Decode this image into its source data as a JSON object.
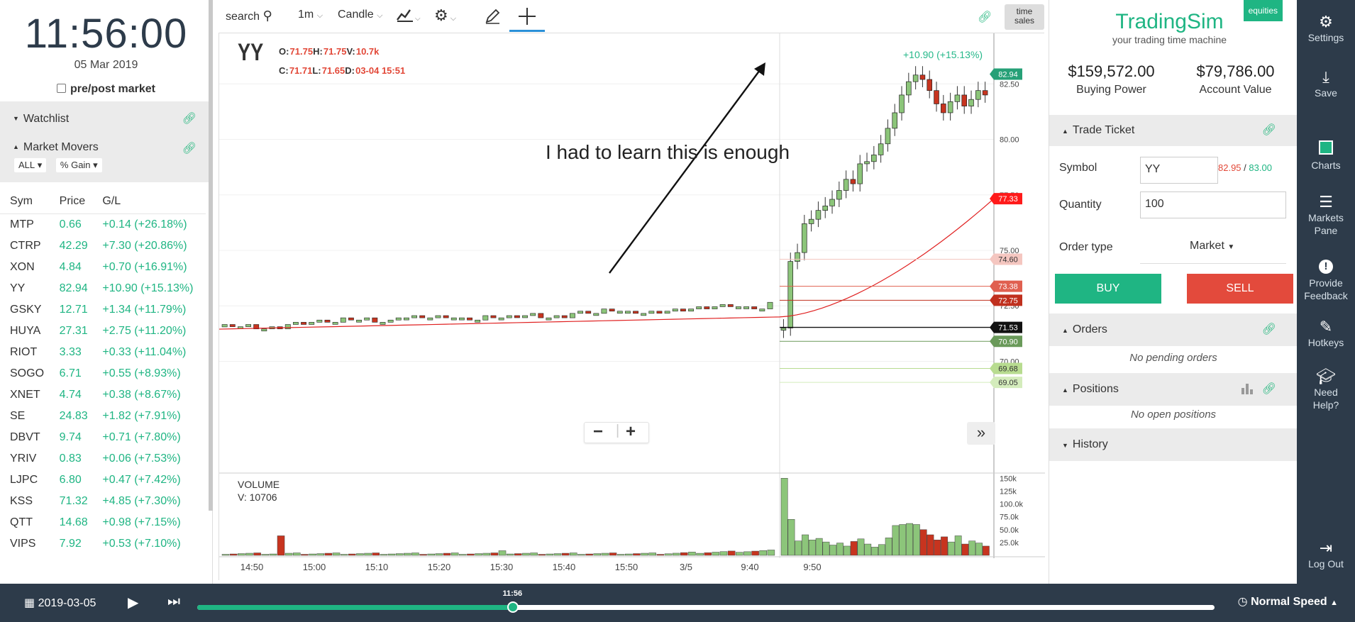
{
  "left": {
    "clock": "11:56:00",
    "date": "05 Mar 2019",
    "prepost_label": "pre/post market",
    "watchlist_title": "Watchlist",
    "movers_title": "Market Movers",
    "filter_all": "ALL",
    "filter_gain": "% Gain",
    "columns": [
      "Sym",
      "Price",
      "G/L"
    ],
    "movers": [
      {
        "sym": "MTP",
        "price": "0.66",
        "gl": "+0.14 (+26.18%)"
      },
      {
        "sym": "CTRP",
        "price": "42.29",
        "gl": "+7.30 (+20.86%)"
      },
      {
        "sym": "XON",
        "price": "4.84",
        "gl": "+0.70 (+16.91%)"
      },
      {
        "sym": "YY",
        "price": "82.94",
        "gl": "+10.90 (+15.13%)"
      },
      {
        "sym": "GSKY",
        "price": "12.71",
        "gl": "+1.34 (+11.79%)"
      },
      {
        "sym": "HUYA",
        "price": "27.31",
        "gl": "+2.75 (+11.20%)"
      },
      {
        "sym": "RIOT",
        "price": "3.33",
        "gl": "+0.33 (+11.04%)"
      },
      {
        "sym": "SOGO",
        "price": "6.71",
        "gl": "+0.55 (+8.93%)"
      },
      {
        "sym": "XNET",
        "price": "4.74",
        "gl": "+0.38 (+8.67%)"
      },
      {
        "sym": "SE",
        "price": "24.83",
        "gl": "+1.82 (+7.91%)"
      },
      {
        "sym": "DBVT",
        "price": "9.74",
        "gl": "+0.71 (+7.80%)"
      },
      {
        "sym": "YRIV",
        "price": "0.83",
        "gl": "+0.06 (+7.53%)"
      },
      {
        "sym": "LJPC",
        "price": "6.80",
        "gl": "+0.47 (+7.42%)"
      },
      {
        "sym": "KSS",
        "price": "71.32",
        "gl": "+4.85 (+7.30%)"
      },
      {
        "sym": "QTT",
        "price": "14.68",
        "gl": "+0.98 (+7.15%)"
      },
      {
        "sym": "VIPS",
        "price": "7.92",
        "gl": "+0.53 (+7.10%)"
      }
    ]
  },
  "toolbar": {
    "search_placeholder": "search",
    "interval": "1m",
    "chart_type": "Candle",
    "time_sales_line1": "time",
    "time_sales_line2": "sales"
  },
  "chart": {
    "symbol": "YY",
    "o_label": "O:",
    "o": "71.75",
    "h_label": "H:",
    "h": "71.75",
    "v_label": "V:",
    "v": "10.7k",
    "c_label": "C:",
    "c": "71.71",
    "l_label": "L:",
    "l": "71.65",
    "d_label": "D:",
    "d": "03-04 15:51",
    "annotation": "I had to learn this is enough",
    "change_label": "+10.90 (+15.13%)",
    "volume_title": "VOLUME",
    "volume_value": "V: 10706",
    "colors": {
      "up": "#8cc57a",
      "down": "#c7341f",
      "ma": "#e02020"
    }
  },
  "chart_data": {
    "type": "line",
    "title": "",
    "price_axis_ticks": [
      "82.50",
      "80.00",
      "77.50",
      "75.00",
      "72.50",
      "70.00"
    ],
    "volume_axis_ticks": [
      "150k",
      "125k",
      "100.0k",
      "75.0k",
      "50.0k",
      "25.0k"
    ],
    "x_ticks": [
      "14:50",
      "15:00",
      "15:10",
      "15:20",
      "15:30",
      "15:40",
      "15:50",
      "3/5",
      "9:40",
      "9:50"
    ],
    "price_tags": [
      {
        "value": "82.94",
        "color": "#26a077"
      },
      {
        "value": "77.33",
        "color": "#ff1a1a"
      },
      {
        "value": "74.60",
        "color": "#f4c6c0"
      },
      {
        "value": "73.38",
        "color": "#e06050"
      },
      {
        "value": "72.75",
        "color": "#c0301e"
      },
      {
        "value": "71.53",
        "color": "#111111"
      },
      {
        "value": "70.90",
        "color": "#6a9a5a"
      },
      {
        "value": "69.68",
        "color": "#b8dc90"
      },
      {
        "value": "69.05",
        "color": "#d4ecbc"
      }
    ],
    "prev_session_close_approx": [
      71.6,
      71.5,
      71.7,
      71.8,
      71.9,
      71.8,
      72.0,
      72.0,
      71.9,
      72.0,
      72.1,
      72.0,
      72.2,
      72.3,
      72.2,
      72.3,
      72.4,
      72.5,
      72.4,
      72.6
    ],
    "today_close_approx": [
      71.5,
      74.5,
      74.9,
      76.2,
      76.4,
      76.8,
      77.0,
      77.3,
      77.7,
      78.2,
      78.0,
      78.9,
      79.0,
      79.3,
      79.8,
      80.5,
      81.2,
      82.0,
      82.6,
      82.9,
      82.7,
      82.2,
      81.6,
      81.2,
      81.7,
      82.0,
      81.5,
      81.8,
      82.2,
      82.0
    ]
  },
  "right": {
    "brand": "TradingSim",
    "tagline": "your trading time machine",
    "equities": "equities",
    "buying_power": "$159,572.00",
    "buying_power_label": "Buying Power",
    "account_value": "$79,786.00",
    "account_value_label": "Account Value",
    "trade_ticket_title": "Trade Ticket",
    "symbol_label": "Symbol",
    "symbol_value": "YY",
    "bid": "82.95",
    "bid_ask_sep": " / ",
    "ask": "83.00",
    "quantity_label": "Quantity",
    "quantity_value": "100",
    "order_type_label": "Order type",
    "order_type_value": "Market",
    "buy_label": "BUY",
    "sell_label": "SELL",
    "orders_title": "Orders",
    "orders_empty": "No pending orders",
    "positions_title": "Positions",
    "positions_empty": "No open positions",
    "history_title": "History"
  },
  "nav": {
    "settings": "Settings",
    "save": "Save",
    "charts": "Charts",
    "markets_line1": "Markets",
    "markets_line2": "Pane",
    "feedback_line1": "Provide",
    "feedback_line2": "Feedback",
    "hotkeys": "Hotkeys",
    "help_line1": "Need",
    "help_line2": "Help?",
    "logout": "Log Out"
  },
  "bottom": {
    "date": "2019-03-05",
    "time_label": "11:56",
    "progress": 0.31,
    "speed": "Normal Speed"
  }
}
